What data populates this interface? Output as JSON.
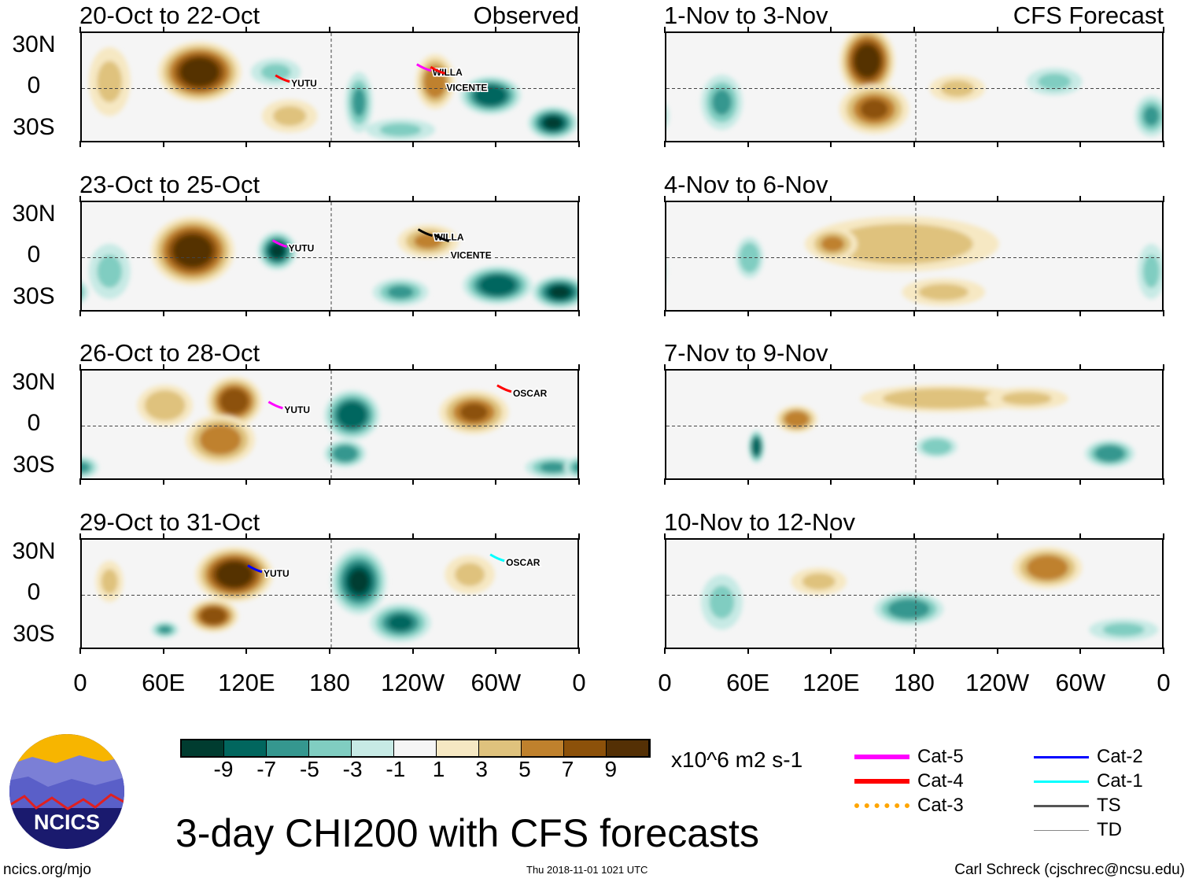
{
  "colorbar": {
    "colors": [
      "#003c30",
      "#01665e",
      "#35978f",
      "#80cdc1",
      "#c7eae5",
      "#f5f5f5",
      "#f6e8c3",
      "#dfc27d",
      "#bf812d",
      "#8c510a",
      "#543005"
    ],
    "labels": [
      "-9",
      "-7",
      "-5",
      "-3",
      "-1",
      "1",
      "3",
      "5",
      "7",
      "9"
    ],
    "units": "x10^6 m2 s-1"
  },
  "title": "3-day CHI200 with CFS forecasts",
  "footer": {
    "left": "ncics.org/mjo",
    "center": "Thu 2018-11-01 1021 UTC",
    "right": "Carl Schreck (cjschrec@ncsu.edu)"
  },
  "logo_text": "NCICS",
  "column_labels": {
    "observed": "Observed",
    "forecast": "CFS Forecast"
  },
  "lat_labels": [
    "30N",
    "0",
    "30S"
  ],
  "lon_labels": [
    "0",
    "60E",
    "120E",
    "180",
    "120W",
    "60W",
    "0"
  ],
  "legend": [
    {
      "label": "Cat-5",
      "color": "#ff00ff",
      "style": "solid",
      "width": 6
    },
    {
      "label": "Cat-4",
      "color": "#ff0000",
      "style": "solid",
      "width": 6
    },
    {
      "label": "Cat-3",
      "color": "#ffa500",
      "style": "dotted",
      "width": 6
    },
    {
      "label": "Cat-2",
      "color": "#0000ff",
      "style": "solid",
      "width": 3
    },
    {
      "label": "Cat-1",
      "color": "#00ffff",
      "style": "solid",
      "width": 3
    },
    {
      "label": "TS",
      "color": "#555555",
      "style": "solid",
      "width": 3
    },
    {
      "label": "TD",
      "color": "#888888",
      "style": "solid",
      "width": 1
    }
  ],
  "panels": [
    {
      "title": "20-Oct to 22-Oct",
      "features": [
        [
          85,
          12,
          10,
          30,
          22
        ],
        [
          150,
          -20,
          3,
          20,
          12
        ],
        [
          255,
          5,
          6,
          14,
          20
        ],
        [
          295,
          -5,
          -8,
          22,
          14
        ],
        [
          340,
          -25,
          -9,
          18,
          12
        ],
        [
          200,
          -10,
          -5,
          10,
          22
        ],
        [
          140,
          12,
          -3,
          18,
          10
        ],
        [
          20,
          5,
          3,
          15,
          25
        ],
        [
          230,
          -30,
          -3,
          25,
          8
        ]
      ],
      "storms": [
        {
          "name": "YUTU",
          "lon": 150,
          "lat": 5,
          "color": "#ff0000"
        },
        {
          "name": "WILLA",
          "lon": 252,
          "lat": 13,
          "color": "#ff00ff"
        },
        {
          "name": "VICENTE",
          "lon": 262,
          "lat": 11,
          "color": "#ff0000"
        }
      ]
    },
    {
      "title": "23-Oct to 25-Oct",
      "features": [
        [
          80,
          5,
          10,
          30,
          25
        ],
        [
          141,
          5,
          -9,
          14,
          14
        ],
        [
          250,
          12,
          5,
          22,
          12
        ],
        [
          300,
          -20,
          -8,
          25,
          14
        ],
        [
          345,
          -25,
          -9,
          20,
          12
        ],
        [
          230,
          -25,
          -5,
          20,
          10
        ],
        [
          20,
          -10,
          -3,
          15,
          20
        ]
      ],
      "storms": [
        {
          "name": "YUTU",
          "lon": 148,
          "lat": 8,
          "color": "#ff00ff"
        },
        {
          "name": "WILLA",
          "lon": 253,
          "lat": 16,
          "color": "#000000"
        },
        {
          "name": "VICENTE",
          "lon": 265,
          "lat": 12,
          "color": "#000000"
        }
      ]
    },
    {
      "title": "26-Oct to 28-Oct",
      "features": [
        [
          110,
          18,
          8,
          20,
          18
        ],
        [
          100,
          -10,
          6,
          25,
          18
        ],
        [
          195,
          8,
          -8,
          20,
          18
        ],
        [
          190,
          -20,
          -6,
          15,
          10
        ],
        [
          283,
          10,
          7,
          25,
          16
        ],
        [
          340,
          -30,
          -5,
          20,
          8
        ],
        [
          0,
          -30,
          -5,
          12,
          8
        ],
        [
          60,
          15,
          4,
          20,
          15
        ]
      ],
      "storms": [
        {
          "name": "YUTU",
          "lon": 145,
          "lat": 13,
          "color": "#ff00ff"
        },
        {
          "name": "OSCAR",
          "lon": 310,
          "lat": 25,
          "color": "#ff0000"
        }
      ]
    },
    {
      "title": "29-Oct to 31-Oct",
      "features": [
        [
          110,
          15,
          10,
          28,
          20
        ],
        [
          95,
          -15,
          8,
          18,
          12
        ],
        [
          200,
          10,
          -9,
          20,
          24
        ],
        [
          230,
          -20,
          -7,
          22,
          14
        ],
        [
          280,
          15,
          3,
          18,
          14
        ],
        [
          60,
          -25,
          -5,
          10,
          6
        ],
        [
          20,
          10,
          3,
          10,
          15
        ]
      ],
      "storms": [
        {
          "name": "YUTU",
          "lon": 130,
          "lat": 17,
          "color": "#0000ff"
        },
        {
          "name": "OSCAR",
          "lon": 305,
          "lat": 25,
          "color": "#00ffff"
        }
      ]
    },
    {
      "title": "1-Nov to 3-Nov",
      "features": [
        [
          145,
          20,
          10,
          20,
          25
        ],
        [
          150,
          -15,
          7,
          25,
          18
        ],
        [
          40,
          -10,
          -5,
          15,
          20
        ],
        [
          350,
          -20,
          -5,
          12,
          15
        ],
        [
          280,
          5,
          -3,
          20,
          10
        ],
        [
          210,
          0,
          3,
          20,
          10
        ]
      ],
      "storms": []
    },
    {
      "title": "4-Nov to 6-Nov",
      "features": [
        [
          170,
          10,
          4,
          70,
          20
        ],
        [
          120,
          10,
          5,
          18,
          12
        ],
        [
          60,
          0,
          -4,
          10,
          15
        ],
        [
          350,
          -10,
          -3,
          10,
          20
        ],
        [
          200,
          -25,
          3,
          30,
          10
        ]
      ],
      "storms": []
    },
    {
      "title": "7-Nov to 9-Nov",
      "features": [
        [
          94,
          5,
          6,
          15,
          10
        ],
        [
          200,
          20,
          4,
          60,
          10
        ],
        [
          65,
          -15,
          -8,
          6,
          12
        ],
        [
          195,
          -15,
          -4,
          15,
          8
        ],
        [
          320,
          -20,
          -6,
          18,
          10
        ],
        [
          260,
          20,
          3,
          30,
          8
        ]
      ],
      "storms": []
    },
    {
      "title": "10-Nov to 12-Nov",
      "features": [
        [
          275,
          20,
          6,
          25,
          15
        ],
        [
          175,
          -10,
          -6,
          25,
          12
        ],
        [
          110,
          10,
          3,
          20,
          10
        ],
        [
          40,
          -5,
          -3,
          15,
          20
        ],
        [
          330,
          -25,
          -3,
          25,
          8
        ]
      ],
      "storms": []
    }
  ]
}
